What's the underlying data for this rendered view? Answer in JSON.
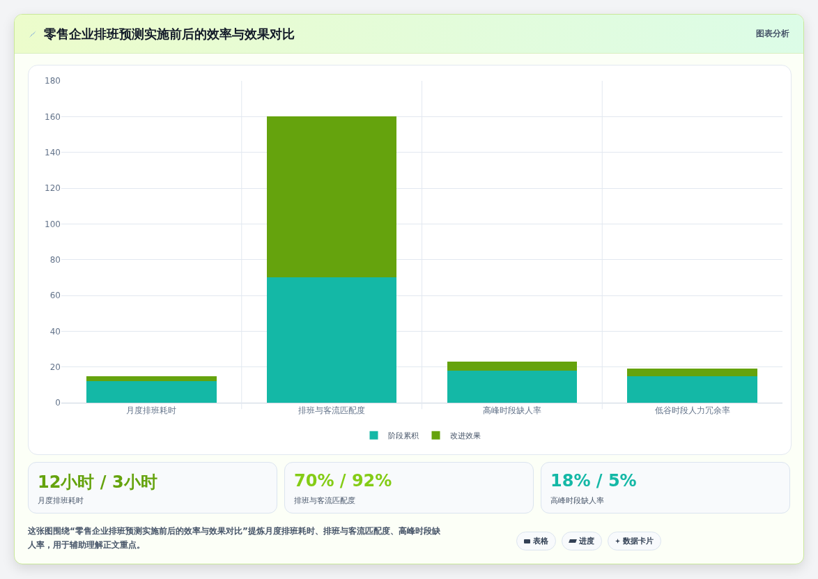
{
  "chart_data": {
    "type": "bar",
    "title": "零售企业排班预测实施前后的效率与效果对比",
    "categories": [
      "月度排班耗时",
      "排班与客流匹配度",
      "高峰时段缺人率",
      "低谷时段人力冗余率"
    ],
    "stacked": true,
    "series": [
      {
        "name": "阶段累积",
        "color": "#14b8a6",
        "values": [
          12,
          70,
          18,
          15
        ]
      },
      {
        "name": "改进效果",
        "color": "#65a30d",
        "values": [
          3,
          90,
          5,
          4
        ]
      }
    ],
    "ylim": [
      0,
      180
    ],
    "yticks": [
      0,
      20,
      40,
      60,
      80,
      100,
      120,
      140,
      160,
      180
    ],
    "grid": true,
    "legend": "bottom",
    "annotations": [
      "图表分析",
      "12小时 / 3小时",
      "月度排班耗时",
      "70% / 92%",
      "排班与客流匹配度",
      "18% / 5%",
      "高峰时段缺人率",
      "这张图围绕“零售企业排班预测实施前后的效率与效果对比”提炼月度排班耗时、排班与客流匹配度、高峰时段缺人率，用于辅助理解正文重点。",
      "表格",
      "进度",
      "数据卡片"
    ]
  }
}
